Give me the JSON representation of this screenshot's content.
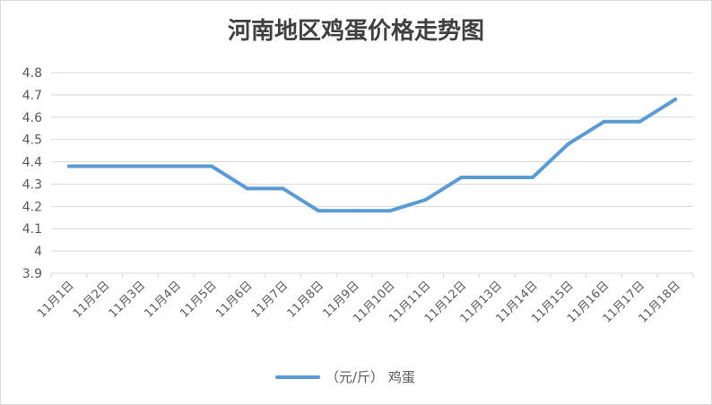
{
  "chart_data": {
    "type": "line",
    "title": "河南地区鸡蛋价格走势图",
    "xlabel": "",
    "ylabel": "",
    "categories": [
      "11月1日",
      "11月2日",
      "11月3日",
      "11月4日",
      "11月5日",
      "11月6日",
      "11月7日",
      "11月8日",
      "11月9日",
      "11月10日",
      "11月11日",
      "11月12日",
      "11月13日",
      "11月14日",
      "11月15日",
      "11月16日",
      "11月17日",
      "11月18日"
    ],
    "series": [
      {
        "name": "（元/斤） 鸡蛋",
        "color": "#5b9bd5",
        "values": [
          4.38,
          4.38,
          4.38,
          4.38,
          4.38,
          4.28,
          4.28,
          4.18,
          4.18,
          4.18,
          4.23,
          4.33,
          4.33,
          4.33,
          4.48,
          4.58,
          4.58,
          4.68
        ]
      }
    ],
    "ylim": [
      3.9,
      4.8
    ],
    "yticks": [
      "3.9",
      "4",
      "4.1",
      "4.2",
      "4.3",
      "4.4",
      "4.5",
      "4.6",
      "4.7",
      "4.8"
    ],
    "grid": true,
    "legend": "bottom-center"
  }
}
